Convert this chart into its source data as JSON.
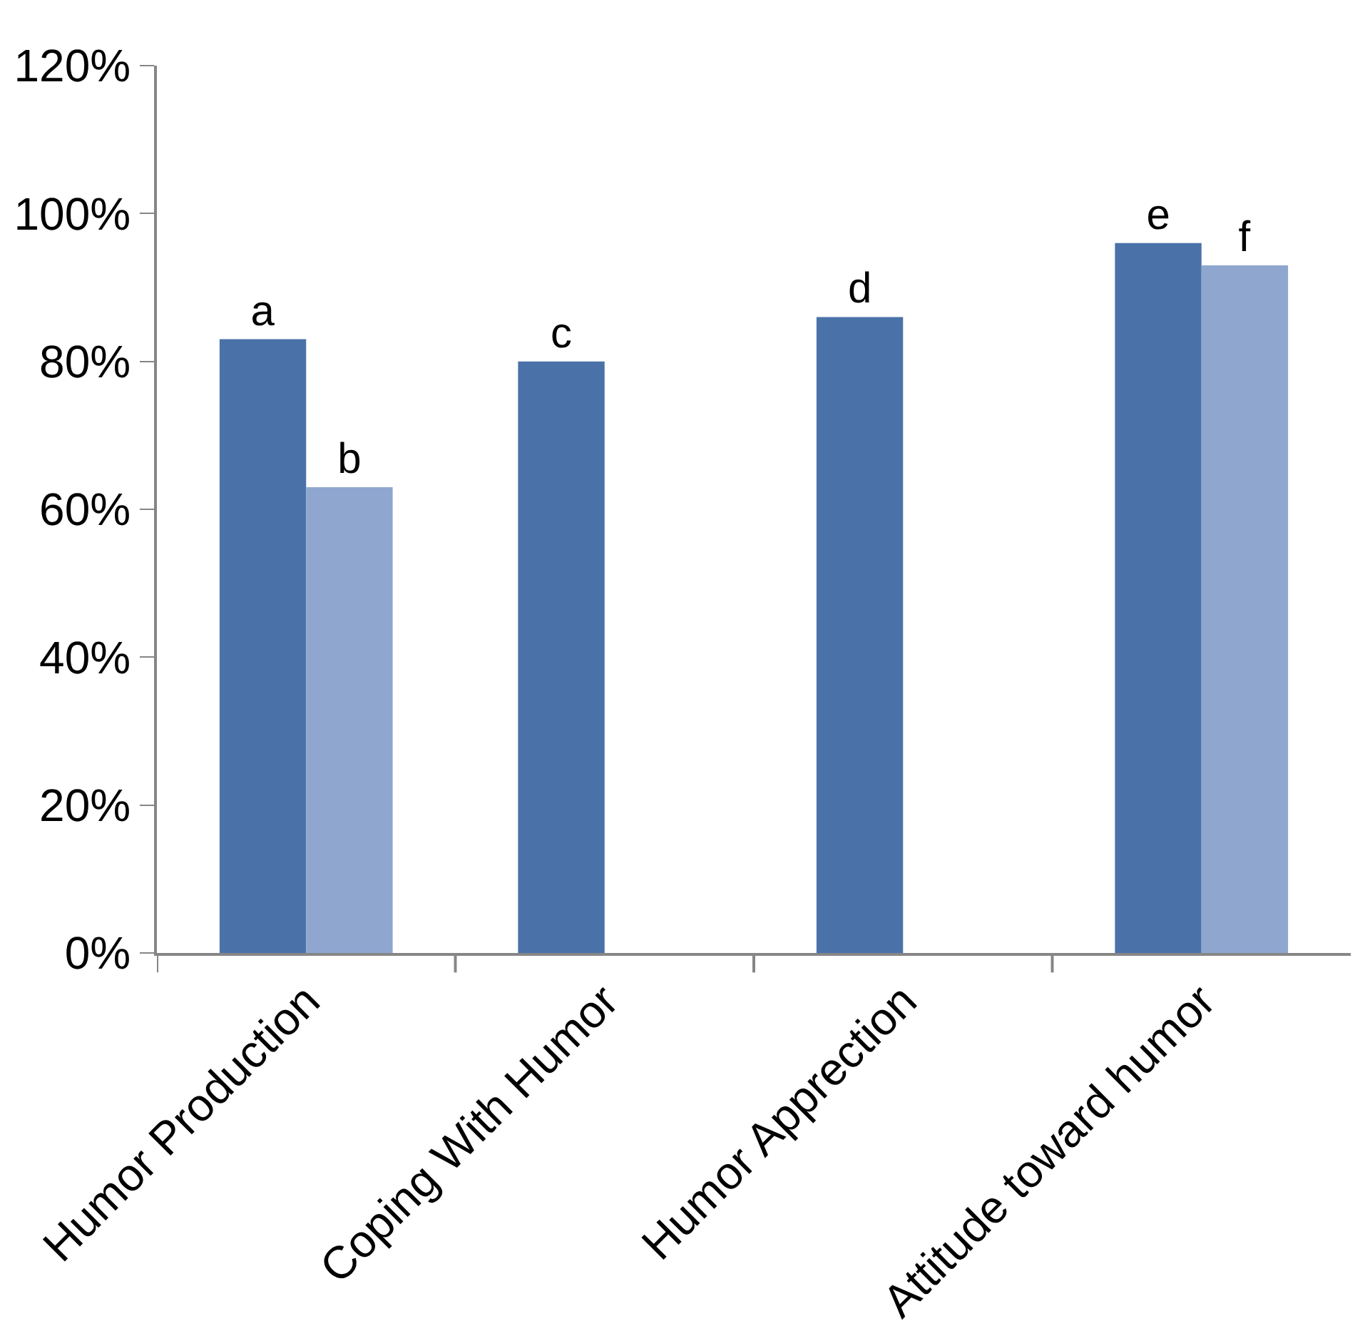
{
  "chart_data": {
    "type": "bar",
    "categories": [
      "Humor Production",
      "Coping With Humor",
      "Humor Apprection",
      "Attitude toward humor"
    ],
    "series": [
      {
        "color": "#4a72a8",
        "values": [
          83,
          80,
          86,
          96
        ],
        "value_labels": [
          "a",
          "c",
          "d",
          "e"
        ]
      },
      {
        "color": "#8fa7cf",
        "values": [
          63,
          null,
          null,
          93
        ],
        "value_labels": [
          "b",
          null,
          null,
          "f"
        ]
      }
    ],
    "ylim": [
      0,
      120
    ],
    "yticks": [
      {
        "value": 0,
        "label": "0%"
      },
      {
        "value": 20,
        "label": "20%"
      },
      {
        "value": 40,
        "label": "40%"
      },
      {
        "value": 60,
        "label": "60%"
      },
      {
        "value": 80,
        "label": "80%"
      },
      {
        "value": 100,
        "label": "100%"
      },
      {
        "value": 120,
        "label": "120%"
      }
    ]
  }
}
